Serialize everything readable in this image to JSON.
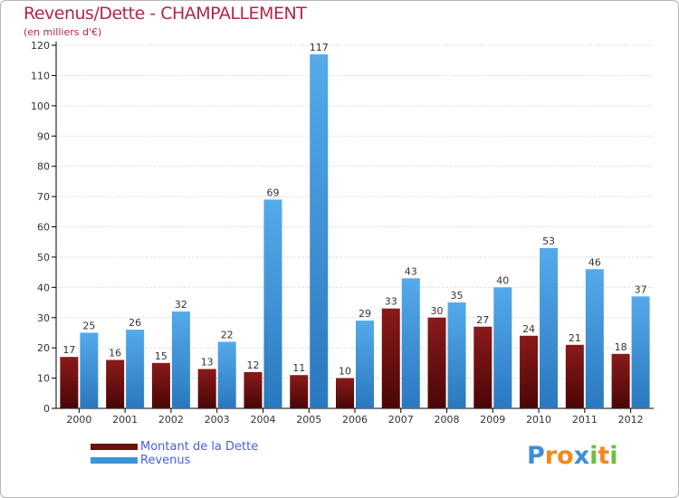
{
  "title": "Revenus/Dette - CHAMPALLEMENT",
  "subtitle": "(en milliers d'€)",
  "chart_data": {
    "type": "bar",
    "title": "Revenus/Dette - CHAMPALLEMENT",
    "ylabel": "(en milliers d'€)",
    "xlabel": "",
    "categories": [
      "2000",
      "2001",
      "2002",
      "2003",
      "2004",
      "2005",
      "2006",
      "2007",
      "2008",
      "2009",
      "2010",
      "2011",
      "2012"
    ],
    "ylim": [
      0,
      120
    ],
    "yticks": [
      0,
      10,
      20,
      30,
      40,
      50,
      60,
      70,
      80,
      90,
      100,
      110,
      120
    ],
    "grid": "horizontal",
    "series": [
      {
        "name": "Montant de la Dette",
        "color": "#7a1212",
        "values": [
          17,
          16,
          15,
          13,
          12,
          11,
          10,
          33,
          30,
          27,
          24,
          21,
          18
        ]
      },
      {
        "name": "Revenus",
        "color": "#3a8fd6",
        "values": [
          25,
          26,
          32,
          22,
          69,
          117,
          29,
          43,
          35,
          40,
          53,
          46,
          37
        ]
      }
    ],
    "legend_position": "bottom-left"
  },
  "legend": {
    "items": [
      {
        "label": "Montant de la Dette",
        "color": "#6b0f0f"
      },
      {
        "label": "Revenus",
        "color": "#3d93d8"
      }
    ]
  },
  "logo": {
    "letters": [
      {
        "ch": "P",
        "color": "#3a8fd6"
      },
      {
        "ch": "r",
        "color": "#f08a1c"
      },
      {
        "ch": "o",
        "color": "#f08a1c"
      },
      {
        "ch": "x",
        "color": "#3a8fd6"
      },
      {
        "ch": "i",
        "color": "#6cbf3c"
      },
      {
        "ch": "t",
        "color": "#f08a1c"
      },
      {
        "ch": "i",
        "color": "#6cbf3c"
      }
    ]
  }
}
